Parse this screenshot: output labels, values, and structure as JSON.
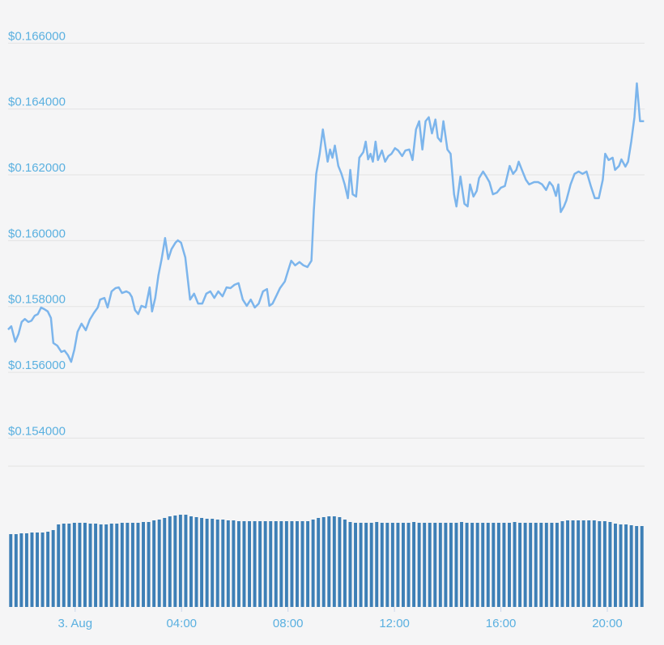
{
  "chart_data": [
    {
      "type": "line",
      "color": "#7cb5ec",
      "grid": true,
      "xlim": [
        -2.52,
        21.4
      ],
      "ylim": [
        0.15315,
        0.16682
      ],
      "xticks": [
        {
          "value": 0,
          "label": "3. Aug"
        },
        {
          "value": 4,
          "label": "04:00"
        },
        {
          "value": 8,
          "label": "08:00"
        },
        {
          "value": 12,
          "label": "12:00"
        },
        {
          "value": 16,
          "label": "16:00"
        },
        {
          "value": 20,
          "label": "20:00"
        }
      ],
      "yticks": [
        {
          "value": 0.154,
          "label": "$0.154000"
        },
        {
          "value": 0.156,
          "label": "$0.156000"
        },
        {
          "value": 0.158,
          "label": "$0.158000"
        },
        {
          "value": 0.16,
          "label": "$0.160000"
        },
        {
          "value": 0.162,
          "label": "$0.162000"
        },
        {
          "value": 0.164,
          "label": "$0.164000"
        },
        {
          "value": 0.166,
          "label": "$0.166000"
        }
      ],
      "x": [
        -2.52,
        -2.4,
        -2.25,
        -2.13,
        -2.01,
        -1.89,
        -1.76,
        -1.64,
        -1.52,
        -1.4,
        -1.28,
        -1.16,
        -1.03,
        -0.91,
        -0.82,
        -0.67,
        -0.52,
        -0.4,
        -0.27,
        -0.15,
        -0.03,
        0.09,
        0.24,
        0.4,
        0.55,
        0.7,
        0.85,
        0.94,
        1.1,
        1.22,
        1.37,
        1.52,
        1.64,
        1.76,
        1.92,
        2.04,
        2.13,
        2.25,
        2.37,
        2.49,
        2.65,
        2.8,
        2.89,
        3.01,
        3.13,
        3.25,
        3.38,
        3.5,
        3.62,
        3.77,
        3.86,
        3.98,
        4.14,
        4.32,
        4.47,
        4.62,
        4.78,
        4.93,
        5.08,
        5.23,
        5.38,
        5.54,
        5.69,
        5.84,
        5.99,
        6.14,
        6.3,
        6.45,
        6.6,
        6.75,
        6.9,
        7.06,
        7.21,
        7.3,
        7.42,
        7.57,
        7.7,
        7.88,
        8.0,
        8.12,
        8.27,
        8.43,
        8.58,
        8.73,
        8.88,
        8.97,
        9.06,
        9.19,
        9.31,
        9.4,
        9.49,
        9.58,
        9.67,
        9.76,
        9.89,
        10.01,
        10.13,
        10.25,
        10.34,
        10.43,
        10.56,
        10.68,
        10.83,
        10.92,
        11.01,
        11.1,
        11.19,
        11.29,
        11.38,
        11.53,
        11.65,
        11.77,
        11.89,
        12.02,
        12.14,
        12.29,
        12.41,
        12.56,
        12.68,
        12.81,
        12.93,
        13.05,
        13.17,
        13.29,
        13.41,
        13.54,
        13.63,
        13.75,
        13.84,
        13.99,
        14.11,
        14.24,
        14.33,
        14.48,
        14.63,
        14.75,
        14.84,
        14.97,
        15.09,
        15.18,
        15.33,
        15.45,
        15.57,
        15.7,
        15.85,
        16.0,
        16.15,
        16.33,
        16.46,
        16.58,
        16.67,
        16.79,
        16.94,
        17.06,
        17.25,
        17.4,
        17.55,
        17.7,
        17.83,
        17.95,
        18.07,
        18.16,
        18.25,
        18.37,
        18.46,
        18.62,
        18.77,
        18.92,
        19.07,
        19.22,
        19.38,
        19.53,
        19.68,
        19.83,
        19.92,
        20.05,
        20.2,
        20.29,
        20.44,
        20.53,
        20.68,
        20.78,
        20.9,
        21.02,
        21.11,
        21.23,
        21.38
      ],
      "values": [
        0.1573,
        0.1574,
        0.15693,
        0.15716,
        0.15753,
        0.15762,
        0.15753,
        0.15757,
        0.15772,
        0.15777,
        0.15797,
        0.15792,
        0.15785,
        0.15765,
        0.15689,
        0.15681,
        0.15662,
        0.15666,
        0.15652,
        0.15632,
        0.15669,
        0.15723,
        0.15748,
        0.15728,
        0.1576,
        0.1578,
        0.15797,
        0.15821,
        0.15826,
        0.15797,
        0.15846,
        0.15856,
        0.15858,
        0.15841,
        0.15846,
        0.15841,
        0.15829,
        0.15789,
        0.15777,
        0.15802,
        0.15797,
        0.15858,
        0.15785,
        0.15826,
        0.15895,
        0.15944,
        0.16008,
        0.15944,
        0.15974,
        0.15994,
        0.16001,
        0.15994,
        0.15949,
        0.15821,
        0.15839,
        0.15809,
        0.15809,
        0.15839,
        0.15846,
        0.15826,
        0.15846,
        0.15831,
        0.15858,
        0.15856,
        0.15866,
        0.15871,
        0.15821,
        0.15802,
        0.15821,
        0.15797,
        0.15809,
        0.15846,
        0.15853,
        0.15802,
        0.15809,
        0.15834,
        0.15856,
        0.15876,
        0.15908,
        0.15939,
        0.15925,
        0.15935,
        0.15925,
        0.1592,
        0.15939,
        0.16092,
        0.16203,
        0.16264,
        0.16338,
        0.16289,
        0.1624,
        0.16277,
        0.16252,
        0.16289,
        0.16227,
        0.16203,
        0.16171,
        0.16129,
        0.16215,
        0.16141,
        0.16134,
        0.16252,
        0.16269,
        0.16301,
        0.16247,
        0.16264,
        0.1624,
        0.16301,
        0.16245,
        0.16274,
        0.1624,
        0.16257,
        0.16264,
        0.16281,
        0.16274,
        0.16257,
        0.16274,
        0.16277,
        0.16245,
        0.16338,
        0.16363,
        0.16277,
        0.16363,
        0.16375,
        0.16326,
        0.16368,
        0.16313,
        0.16301,
        0.16363,
        0.16277,
        0.16264,
        0.16141,
        0.16104,
        0.16195,
        0.16112,
        0.16104,
        0.16171,
        0.16134,
        0.16151,
        0.1619,
        0.1621,
        0.16195,
        0.16178,
        0.16141,
        0.16146,
        0.16161,
        0.16166,
        0.16227,
        0.16203,
        0.16215,
        0.1624,
        0.16215,
        0.16185,
        0.16171,
        0.16178,
        0.16178,
        0.16171,
        0.16154,
        0.16178,
        0.16166,
        0.16136,
        0.16171,
        0.16087,
        0.16104,
        0.16122,
        0.16171,
        0.16203,
        0.1621,
        0.16203,
        0.1621,
        0.16166,
        0.16129,
        0.16129,
        0.16185,
        0.16264,
        0.16245,
        0.16252,
        0.16215,
        0.16227,
        0.16247,
        0.16225,
        0.1624,
        0.16301,
        0.16375,
        0.16478,
        0.16363,
        0.16363
      ]
    },
    {
      "type": "bar",
      "color": "#3d7fb6",
      "ylim": [
        0,
        174
      ],
      "values": [
        90,
        90,
        91,
        91,
        92,
        92,
        92,
        93,
        95,
        102,
        103,
        103,
        104,
        104,
        104,
        103,
        103,
        102,
        102,
        103,
        103,
        104,
        104,
        104,
        104,
        105,
        105,
        107,
        108,
        110,
        112,
        113,
        114,
        114,
        112,
        111,
        110,
        109,
        109,
        108,
        108,
        107,
        107,
        106,
        106,
        106,
        106,
        106,
        106,
        106,
        106,
        106,
        106,
        106,
        106,
        106,
        106,
        108,
        110,
        111,
        112,
        112,
        111,
        108,
        105,
        104,
        104,
        104,
        104,
        105,
        104,
        104,
        104,
        104,
        104,
        104,
        105,
        104,
        104,
        104,
        104,
        104,
        104,
        104,
        104,
        105,
        104,
        104,
        104,
        104,
        104,
        104,
        104,
        104,
        104,
        105,
        104,
        104,
        104,
        104,
        104,
        104,
        104,
        104,
        106,
        107,
        107,
        107,
        107,
        107,
        107,
        106,
        106,
        105,
        103,
        102,
        102,
        101,
        100,
        100
      ]
    }
  ]
}
